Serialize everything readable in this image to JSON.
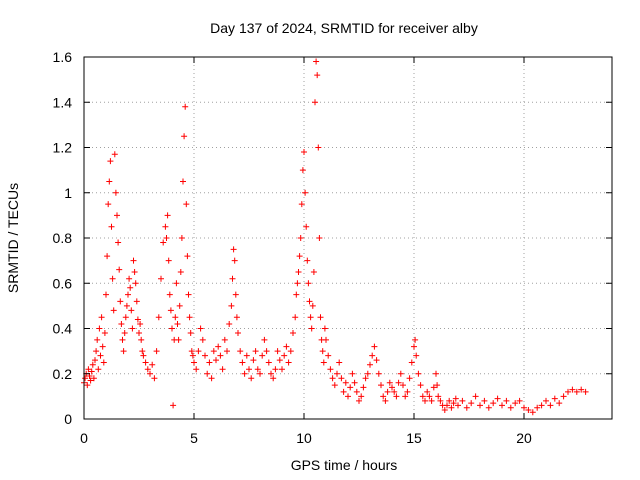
{
  "chart_data": {
    "type": "scatter",
    "title": "Day 137 of 2024, SRMTID for receiver alby",
    "xlabel": "GPS time / hours",
    "ylabel": "SRMTID / TECUs",
    "xlim": [
      0,
      24
    ],
    "ylim": [
      0,
      1.6
    ],
    "xticks": [
      0,
      5,
      10,
      15,
      20
    ],
    "xtick_labels": [
      "0",
      "5",
      "10",
      "15",
      "20"
    ],
    "yticks": [
      0,
      0.2,
      0.4,
      0.6,
      0.8,
      1.0,
      1.2,
      1.4,
      1.6
    ],
    "ytick_labels": [
      "0",
      "0.2",
      "0.4",
      "0.6",
      "0.8",
      "1",
      "1.2",
      "1.4",
      "1.6"
    ],
    "grid": true,
    "marker": "+",
    "color": "#ff0000",
    "series": [
      {
        "name": "SRMTID",
        "points": [
          [
            0.0,
            0.16
          ],
          [
            0.05,
            0.18
          ],
          [
            0.1,
            0.2
          ],
          [
            0.15,
            0.15
          ],
          [
            0.2,
            0.22
          ],
          [
            0.25,
            0.19
          ],
          [
            0.3,
            0.17
          ],
          [
            0.35,
            0.21
          ],
          [
            0.4,
            0.24
          ],
          [
            0.45,
            0.18
          ],
          [
            0.5,
            0.26
          ],
          [
            0.55,
            0.3
          ],
          [
            0.6,
            0.35
          ],
          [
            0.65,
            0.22
          ],
          [
            0.7,
            0.4
          ],
          [
            0.75,
            0.28
          ],
          [
            0.8,
            0.45
          ],
          [
            0.85,
            0.32
          ],
          [
            0.9,
            0.25
          ],
          [
            0.95,
            0.38
          ],
          [
            1.0,
            0.55
          ],
          [
            1.05,
            0.72
          ],
          [
            1.1,
            0.95
          ],
          [
            1.15,
            1.05
          ],
          [
            1.2,
            1.14
          ],
          [
            1.25,
            0.85
          ],
          [
            1.3,
            0.62
          ],
          [
            1.35,
            0.48
          ],
          [
            1.4,
            1.17
          ],
          [
            1.45,
            1.0
          ],
          [
            1.5,
            0.9
          ],
          [
            1.55,
            0.78
          ],
          [
            1.6,
            0.66
          ],
          [
            1.65,
            0.52
          ],
          [
            1.7,
            0.42
          ],
          [
            1.75,
            0.35
          ],
          [
            1.8,
            0.3
          ],
          [
            1.85,
            0.38
          ],
          [
            1.9,
            0.45
          ],
          [
            1.95,
            0.5
          ],
          [
            2.0,
            0.55
          ],
          [
            2.05,
            0.62
          ],
          [
            2.1,
            0.58
          ],
          [
            2.15,
            0.48
          ],
          [
            2.2,
            0.4
          ],
          [
            2.25,
            0.7
          ],
          [
            2.3,
            0.65
          ],
          [
            2.35,
            0.6
          ],
          [
            2.4,
            0.52
          ],
          [
            2.45,
            0.44
          ],
          [
            2.5,
            0.38
          ],
          [
            2.55,
            0.42
          ],
          [
            2.6,
            0.35
          ],
          [
            2.65,
            0.3
          ],
          [
            2.7,
            0.28
          ],
          [
            2.8,
            0.25
          ],
          [
            2.9,
            0.22
          ],
          [
            3.0,
            0.2
          ],
          [
            3.1,
            0.24
          ],
          [
            3.2,
            0.18
          ],
          [
            3.3,
            0.3
          ],
          [
            3.4,
            0.45
          ],
          [
            3.5,
            0.62
          ],
          [
            3.6,
            0.78
          ],
          [
            3.7,
            0.85
          ],
          [
            3.75,
            0.8
          ],
          [
            3.8,
            0.9
          ],
          [
            3.85,
            0.7
          ],
          [
            3.9,
            0.55
          ],
          [
            3.95,
            0.48
          ],
          [
            4.0,
            0.4
          ],
          [
            4.05,
            0.06
          ],
          [
            4.1,
            0.35
          ],
          [
            4.15,
            0.45
          ],
          [
            4.2,
            0.6
          ],
          [
            4.25,
            0.42
          ],
          [
            4.3,
            0.35
          ],
          [
            4.35,
            0.5
          ],
          [
            4.4,
            0.65
          ],
          [
            4.45,
            0.8
          ],
          [
            4.5,
            1.05
          ],
          [
            4.55,
            1.25
          ],
          [
            4.6,
            1.38
          ],
          [
            4.65,
            0.95
          ],
          [
            4.7,
            0.72
          ],
          [
            4.75,
            0.55
          ],
          [
            4.8,
            0.45
          ],
          [
            4.85,
            0.38
          ],
          [
            4.9,
            0.3
          ],
          [
            4.95,
            0.28
          ],
          [
            5.0,
            0.25
          ],
          [
            5.1,
            0.22
          ],
          [
            5.2,
            0.3
          ],
          [
            5.3,
            0.4
          ],
          [
            5.4,
            0.35
          ],
          [
            5.5,
            0.28
          ],
          [
            5.6,
            0.2
          ],
          [
            5.7,
            0.25
          ],
          [
            5.8,
            0.18
          ],
          [
            5.9,
            0.3
          ],
          [
            6.0,
            0.26
          ],
          [
            6.1,
            0.32
          ],
          [
            6.2,
            0.28
          ],
          [
            6.3,
            0.22
          ],
          [
            6.4,
            0.35
          ],
          [
            6.5,
            0.3
          ],
          [
            6.6,
            0.42
          ],
          [
            6.7,
            0.5
          ],
          [
            6.75,
            0.62
          ],
          [
            6.8,
            0.75
          ],
          [
            6.85,
            0.7
          ],
          [
            6.9,
            0.55
          ],
          [
            6.95,
            0.45
          ],
          [
            7.0,
            0.38
          ],
          [
            7.1,
            0.3
          ],
          [
            7.2,
            0.25
          ],
          [
            7.3,
            0.2
          ],
          [
            7.4,
            0.28
          ],
          [
            7.5,
            0.22
          ],
          [
            7.6,
            0.18
          ],
          [
            7.7,
            0.26
          ],
          [
            7.8,
            0.3
          ],
          [
            7.9,
            0.22
          ],
          [
            8.0,
            0.2
          ],
          [
            8.1,
            0.28
          ],
          [
            8.2,
            0.35
          ],
          [
            8.3,
            0.3
          ],
          [
            8.4,
            0.25
          ],
          [
            8.5,
            0.2
          ],
          [
            8.6,
            0.18
          ],
          [
            8.7,
            0.22
          ],
          [
            8.8,
            0.3
          ],
          [
            8.9,
            0.26
          ],
          [
            9.0,
            0.22
          ],
          [
            9.1,
            0.28
          ],
          [
            9.2,
            0.32
          ],
          [
            9.3,
            0.25
          ],
          [
            9.4,
            0.3
          ],
          [
            9.5,
            0.38
          ],
          [
            9.6,
            0.45
          ],
          [
            9.65,
            0.55
          ],
          [
            9.7,
            0.6
          ],
          [
            9.75,
            0.65
          ],
          [
            9.8,
            0.72
          ],
          [
            9.85,
            0.8
          ],
          [
            9.9,
            0.95
          ],
          [
            9.95,
            1.1
          ],
          [
            10.0,
            1.18
          ],
          [
            10.05,
            1.0
          ],
          [
            10.1,
            0.85
          ],
          [
            10.15,
            0.7
          ],
          [
            10.2,
            0.6
          ],
          [
            10.25,
            0.52
          ],
          [
            10.3,
            0.45
          ],
          [
            10.35,
            0.4
          ],
          [
            10.4,
            0.5
          ],
          [
            10.45,
            0.65
          ],
          [
            10.5,
            1.4
          ],
          [
            10.55,
            1.58
          ],
          [
            10.6,
            1.52
          ],
          [
            10.65,
            1.2
          ],
          [
            10.7,
            0.8
          ],
          [
            10.75,
            0.45
          ],
          [
            10.8,
            0.35
          ],
          [
            10.85,
            0.3
          ],
          [
            10.9,
            0.25
          ],
          [
            10.95,
            0.4
          ],
          [
            11.0,
            0.35
          ],
          [
            11.1,
            0.28
          ],
          [
            11.2,
            0.22
          ],
          [
            11.3,
            0.18
          ],
          [
            11.4,
            0.15
          ],
          [
            11.5,
            0.2
          ],
          [
            11.6,
            0.25
          ],
          [
            11.7,
            0.18
          ],
          [
            11.8,
            0.12
          ],
          [
            11.9,
            0.16
          ],
          [
            12.0,
            0.1
          ],
          [
            12.1,
            0.14
          ],
          [
            12.2,
            0.2
          ],
          [
            12.3,
            0.16
          ],
          [
            12.4,
            0.12
          ],
          [
            12.5,
            0.08
          ],
          [
            12.6,
            0.1
          ],
          [
            12.7,
            0.14
          ],
          [
            12.8,
            0.18
          ],
          [
            12.9,
            0.2
          ],
          [
            13.0,
            0.24
          ],
          [
            13.1,
            0.28
          ],
          [
            13.2,
            0.32
          ],
          [
            13.3,
            0.26
          ],
          [
            13.4,
            0.2
          ],
          [
            13.5,
            0.15
          ],
          [
            13.6,
            0.1
          ],
          [
            13.7,
            0.08
          ],
          [
            13.8,
            0.12
          ],
          [
            13.9,
            0.16
          ],
          [
            14.0,
            0.14
          ],
          [
            14.1,
            0.12
          ],
          [
            14.2,
            0.1
          ],
          [
            14.3,
            0.16
          ],
          [
            14.4,
            0.2
          ],
          [
            14.5,
            0.15
          ],
          [
            14.6,
            0.1
          ],
          [
            14.7,
            0.12
          ],
          [
            14.8,
            0.18
          ],
          [
            14.9,
            0.25
          ],
          [
            15.0,
            0.32
          ],
          [
            15.05,
            0.35
          ],
          [
            15.1,
            0.28
          ],
          [
            15.2,
            0.2
          ],
          [
            15.3,
            0.15
          ],
          [
            15.4,
            0.1
          ],
          [
            15.5,
            0.08
          ],
          [
            15.6,
            0.12
          ],
          [
            15.7,
            0.1
          ],
          [
            15.8,
            0.08
          ],
          [
            15.9,
            0.14
          ],
          [
            16.0,
            0.2
          ],
          [
            16.05,
            0.15
          ],
          [
            16.1,
            0.1
          ],
          [
            16.2,
            0.08
          ],
          [
            16.3,
            0.06
          ],
          [
            16.4,
            0.04
          ],
          [
            16.5,
            0.06
          ],
          [
            16.6,
            0.08
          ],
          [
            16.7,
            0.05
          ],
          [
            16.8,
            0.07
          ],
          [
            16.9,
            0.09
          ],
          [
            17.0,
            0.06
          ],
          [
            17.2,
            0.08
          ],
          [
            17.4,
            0.05
          ],
          [
            17.6,
            0.07
          ],
          [
            17.8,
            0.1
          ],
          [
            18.0,
            0.06
          ],
          [
            18.2,
            0.08
          ],
          [
            18.4,
            0.05
          ],
          [
            18.6,
            0.07
          ],
          [
            18.8,
            0.09
          ],
          [
            19.0,
            0.06
          ],
          [
            19.2,
            0.08
          ],
          [
            19.4,
            0.05
          ],
          [
            19.6,
            0.07
          ],
          [
            19.8,
            0.08
          ],
          [
            20.0,
            0.05
          ],
          [
            20.2,
            0.04
          ],
          [
            20.4,
            0.03
          ],
          [
            20.6,
            0.05
          ],
          [
            20.8,
            0.06
          ],
          [
            21.0,
            0.08
          ],
          [
            21.2,
            0.06
          ],
          [
            21.4,
            0.09
          ],
          [
            21.6,
            0.07
          ],
          [
            21.8,
            0.1
          ],
          [
            22.0,
            0.12
          ],
          [
            22.2,
            0.13
          ],
          [
            22.4,
            0.12
          ],
          [
            22.6,
            0.13
          ],
          [
            22.8,
            0.12
          ]
        ]
      }
    ]
  }
}
